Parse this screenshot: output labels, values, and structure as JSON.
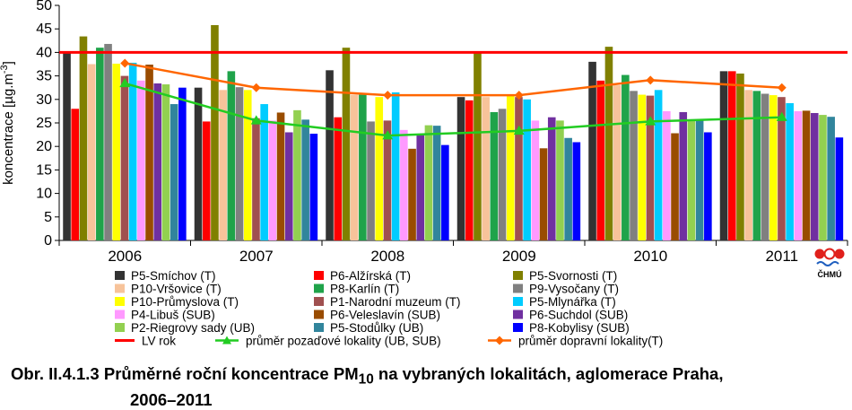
{
  "chart_data": {
    "type": "bar",
    "ylabel": "koncentrace [µg.m",
    "ylabel_sup": "-3",
    "ylabel_end": "]",
    "ylim": [
      0,
      50
    ],
    "yticks": [
      "0",
      "5",
      "10",
      "15",
      "20",
      "25",
      "30",
      "35",
      "40",
      "45",
      "50"
    ],
    "grid": false,
    "categories": [
      "2006",
      "2007",
      "2008",
      "2009",
      "2010",
      "2011"
    ],
    "series": [
      {
        "name": "P5-Smíchov (T)",
        "color": "#333333",
        "values": [
          40.0,
          32.5,
          36.2,
          30.5,
          38.0,
          36.0
        ]
      },
      {
        "name": "P6-Alžírská (T)",
        "color": "#ff0000",
        "values": [
          28.0,
          25.3,
          26.2,
          29.8,
          34.0,
          36.0
        ]
      },
      {
        "name": "P5-Svornosti (T)",
        "color": "#808000",
        "values": [
          43.4,
          45.8,
          41.0,
          40.0,
          41.2,
          35.5
        ]
      },
      {
        "name": "P10-Vršovice (T)",
        "color": "#f7c39a",
        "values": [
          37.5,
          32.0,
          31.0,
          30.5,
          33.0,
          32.0
        ]
      },
      {
        "name": "P8-Karlín (T)",
        "color": "#1fa34a",
        "values": [
          41.0,
          36.0,
          31.0,
          27.3,
          35.2,
          31.8
        ]
      },
      {
        "name": "P9-Vysočany (T)",
        "color": "#808080",
        "values": [
          41.8,
          32.6,
          25.3,
          28.0,
          31.8,
          31.2
        ]
      },
      {
        "name": "P10-Průmyslova (T)",
        "color": "#ffff00",
        "values": [
          37.6,
          32.0,
          30.5,
          30.8,
          31.0,
          30.9
        ]
      },
      {
        "name": "P1-Narodní muzeum (T)",
        "color": "#a05050",
        "values": [
          35.0,
          26.0,
          25.5,
          30.5,
          30.8,
          30.5
        ]
      },
      {
        "name": "P5-Mlynářka (T)",
        "color": "#00ccff",
        "values": [
          37.8,
          29.0,
          31.5,
          30.0,
          32.0,
          29.2
        ]
      },
      {
        "name": "P4-Libuš (SUB)",
        "color": "#ff99ff",
        "values": [
          34.0,
          25.5,
          23.5,
          25.5,
          27.5,
          27.5
        ]
      },
      {
        "name": "P6-Veleslavín (SUB)",
        "color": "#994c00",
        "values": [
          37.4,
          27.2,
          19.5,
          19.6,
          22.8,
          27.6
        ]
      },
      {
        "name": "P6-Suchdol (SUB)",
        "color": "#7030a0",
        "values": [
          33.4,
          23.0,
          22.5,
          26.2,
          27.3,
          27.1
        ]
      },
      {
        "name": "P2-Riegrovy sady (UB)",
        "color": "#92d050",
        "values": [
          33.2,
          27.7,
          24.5,
          25.5,
          25.6,
          26.7
        ]
      },
      {
        "name": "P5-Stodůlky (UB)",
        "color": "#31859c",
        "values": [
          29.0,
          25.7,
          24.4,
          21.8,
          25.7,
          26.3
        ]
      },
      {
        "name": "P8-Kobylisy (SUB)",
        "color": "#0000ff",
        "values": [
          32.5,
          22.7,
          20.3,
          20.9,
          23.0,
          21.9
        ]
      }
    ],
    "limit": {
      "name": "LV rok",
      "value": 40,
      "color": "#ff0000"
    },
    "lines": [
      {
        "name": "průměr pozaďové lokality (UB, SUB)",
        "color": "#22cc22",
        "marker": "triangle",
        "values": [
          33.4,
          25.5,
          22.3,
          23.3,
          25.3,
          26.2
        ]
      },
      {
        "name": "průměr dopravní lokality(T)",
        "color": "#ff6600",
        "marker": "diamond",
        "values": [
          37.7,
          32.5,
          30.9,
          30.9,
          34.1,
          32.5
        ]
      }
    ]
  },
  "caption": {
    "prefix": "Obr. II.4.1.3  Průměrné roční koncentrace PM",
    "sub": "10",
    "suffix": " na vybraných lokalitách, aglomerace Praha,",
    "line2": "2006–2011"
  },
  "logo": {
    "text": "ČHMÚ"
  }
}
